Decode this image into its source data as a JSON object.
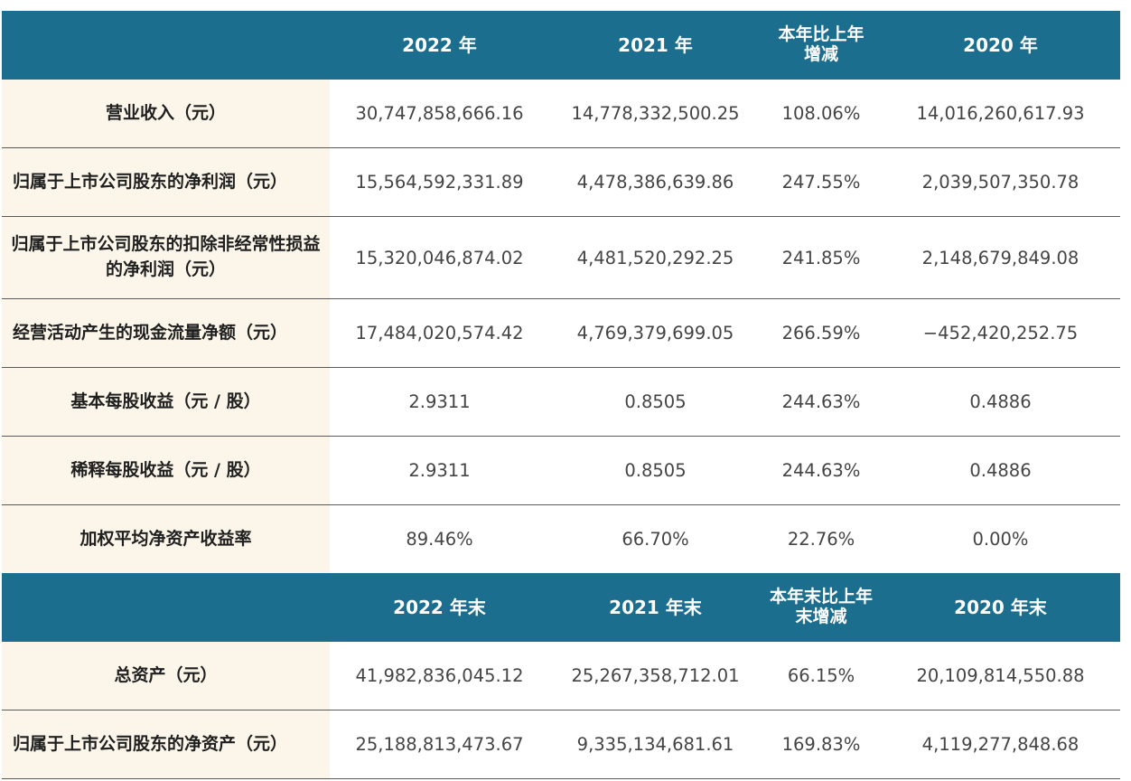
{
  "headers_top": [
    "",
    "2022 年",
    "2021 年",
    "本年比上年\n增减",
    "2020 年"
  ],
  "headers_bottom": [
    "",
    "2022 年末",
    "2021 年末",
    "本年末比上年\n末增减",
    "2020 年末"
  ],
  "rows_top": [
    {
      "label": "营业收入（元）",
      "v2022": "30,747,858,666.16",
      "v2021": "14,778,332,500.25",
      "change": "108.06%",
      "v2020": "14,016,260,617.93"
    },
    {
      "label": "归属于上市公司股东的净利润（元）",
      "v2022": "15,564,592,331.89",
      "v2021": "4,478,386,639.86",
      "change": "247.55%",
      "v2020": "2,039,507,350.78"
    },
    {
      "label": "归属于上市公司股东的扣除非经常性损益的净利润（元）",
      "v2022": "15,320,046,874.02",
      "v2021": "4,481,520,292.25",
      "change": "241.85%",
      "v2020": "2,148,679,849.08"
    },
    {
      "label": "经营活动产生的现金流量净额（元）",
      "v2022": "17,484,020,574.42",
      "v2021": "4,769,379,699.05",
      "change": "266.59%",
      "v2020": "−452,420,252.75"
    },
    {
      "label": "基本每股收益（元 / 股）",
      "v2022": "2.9311",
      "v2021": "0.8505",
      "change": "244.63%",
      "v2020": "0.4886"
    },
    {
      "label": "稀释每股收益（元 / 股）",
      "v2022": "2.9311",
      "v2021": "0.8505",
      "change": "244.63%",
      "v2020": "0.4886"
    },
    {
      "label": "加权平均净资产收益率",
      "v2022": "89.46%",
      "v2021": "66.70%",
      "change": "22.76%",
      "v2020": "0.00%"
    }
  ],
  "rows_bottom": [
    {
      "label": "总资产（元）",
      "v2022": "41,982,836,045.12",
      "v2021": "25,267,358,712.01",
      "change": "66.15%",
      "v2020": "20,109,814,550.88"
    },
    {
      "label": "归属于上市公司股东的净资产（元）",
      "v2022": "25,188,813,473.67",
      "v2021": "9,335,134,681.61",
      "change": "169.83%",
      "v2020": "4,119,277,848.68"
    }
  ]
}
